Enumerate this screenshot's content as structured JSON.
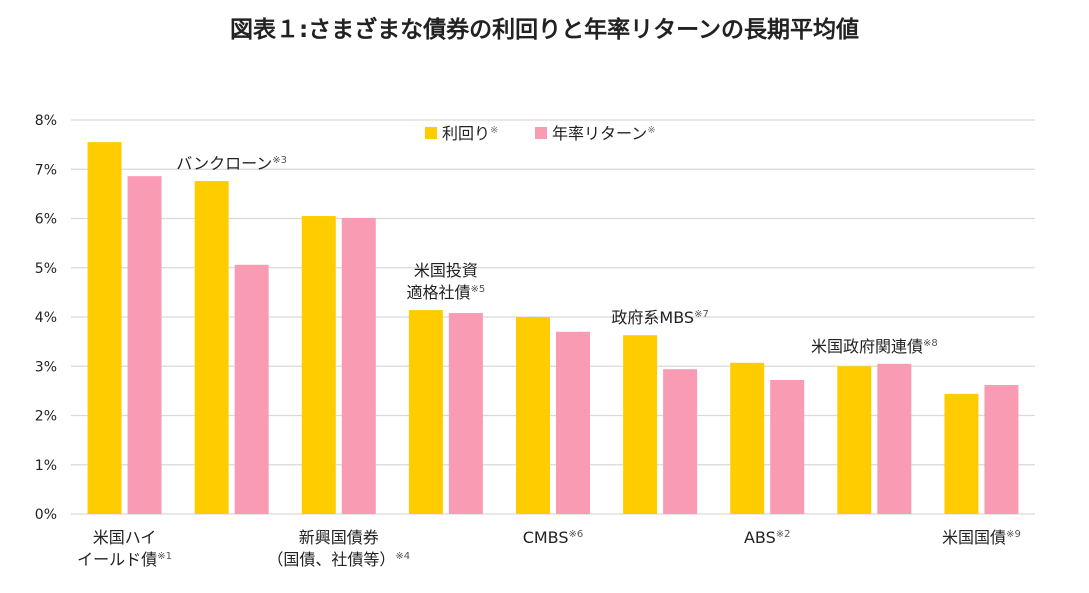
{
  "chart_data": {
    "type": "bar",
    "title": "図表１:さまざまな債券の利回りと年率リターンの長期平均値",
    "ylabel": "",
    "xlabel": "",
    "ylim": [
      0,
      8
    ],
    "yticks": [
      "0%",
      "1%",
      "2%",
      "3%",
      "4%",
      "5%",
      "6%",
      "7%",
      "8%"
    ],
    "grid": true,
    "legend_position": "top-center",
    "categories": [
      {
        "lines": [
          "米国ハイ",
          "イールド債"
        ],
        "note": "※1",
        "placement": "below"
      },
      {
        "lines": [
          "バンクローン"
        ],
        "note": "※3",
        "placement": "above"
      },
      {
        "lines": [
          "新興国債券",
          "（国債、社債等）"
        ],
        "note": "※4",
        "placement": "below"
      },
      {
        "lines": [
          "米国投資",
          "適格社債"
        ],
        "note": "※5",
        "placement": "above"
      },
      {
        "lines": [
          "CMBS"
        ],
        "note": "※6",
        "placement": "below"
      },
      {
        "lines": [
          "政府系MBS"
        ],
        "note": "※7",
        "placement": "above"
      },
      {
        "lines": [
          "ABS"
        ],
        "note": "※2",
        "placement": "below"
      },
      {
        "lines": [
          "米国政府関連債"
        ],
        "note": "※8",
        "placement": "above"
      },
      {
        "lines": [
          "米国国債"
        ],
        "note": "※9",
        "placement": "below"
      }
    ],
    "series": [
      {
        "name": "利回り",
        "note": "※",
        "color": "#FFCC00",
        "values": [
          7.55,
          6.76,
          6.05,
          4.14,
          4.0,
          3.63,
          3.07,
          3.0,
          2.44
        ]
      },
      {
        "name": "年率リターン",
        "note": "※",
        "color": "#F99BB3",
        "values": [
          6.86,
          5.06,
          6.01,
          4.08,
          3.7,
          2.94,
          2.72,
          3.05,
          2.62
        ]
      }
    ]
  }
}
